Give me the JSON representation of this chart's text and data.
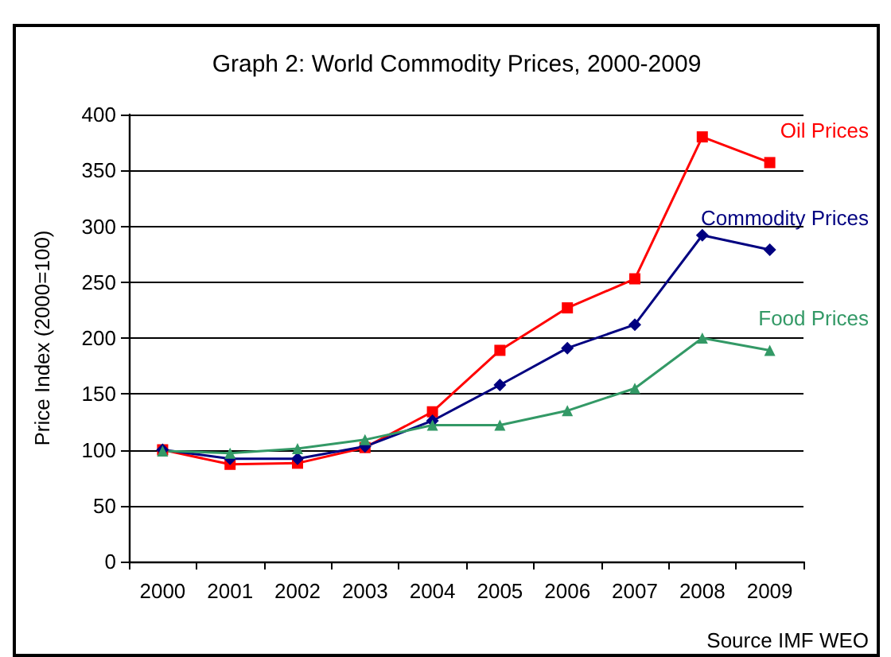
{
  "chart_data": {
    "type": "line",
    "title": "Graph 2: World Commodity Prices, 2000-2009",
    "ylabel": "Price Index (2000=100)",
    "categories": [
      "2000",
      "2001",
      "2002",
      "2003",
      "2004",
      "2005",
      "2006",
      "2007",
      "2008",
      "2009"
    ],
    "series": [
      {
        "name": "Oil Prices",
        "color": "#ff0000",
        "marker": "square",
        "values": [
          100,
          87,
          88,
          102,
          134,
          189,
          227,
          253,
          380,
          357
        ]
      },
      {
        "name": "Commodity Prices",
        "color": "#000080",
        "marker": "diamond",
        "values": [
          100,
          92,
          92,
          103,
          126,
          158,
          191,
          212,
          292,
          279
        ]
      },
      {
        "name": "Food Prices",
        "color": "#339966",
        "marker": "triangle",
        "values": [
          99,
          97,
          101,
          109,
          122,
          122,
          135,
          155,
          200,
          189
        ]
      }
    ],
    "ylim": [
      0,
      400
    ],
    "yticks": [
      0,
      50,
      100,
      150,
      200,
      250,
      300,
      350,
      400
    ],
    "grid": "y",
    "legend": false,
    "line_style": "solid",
    "annotations": [
      "Source IMF WEO"
    ]
  }
}
